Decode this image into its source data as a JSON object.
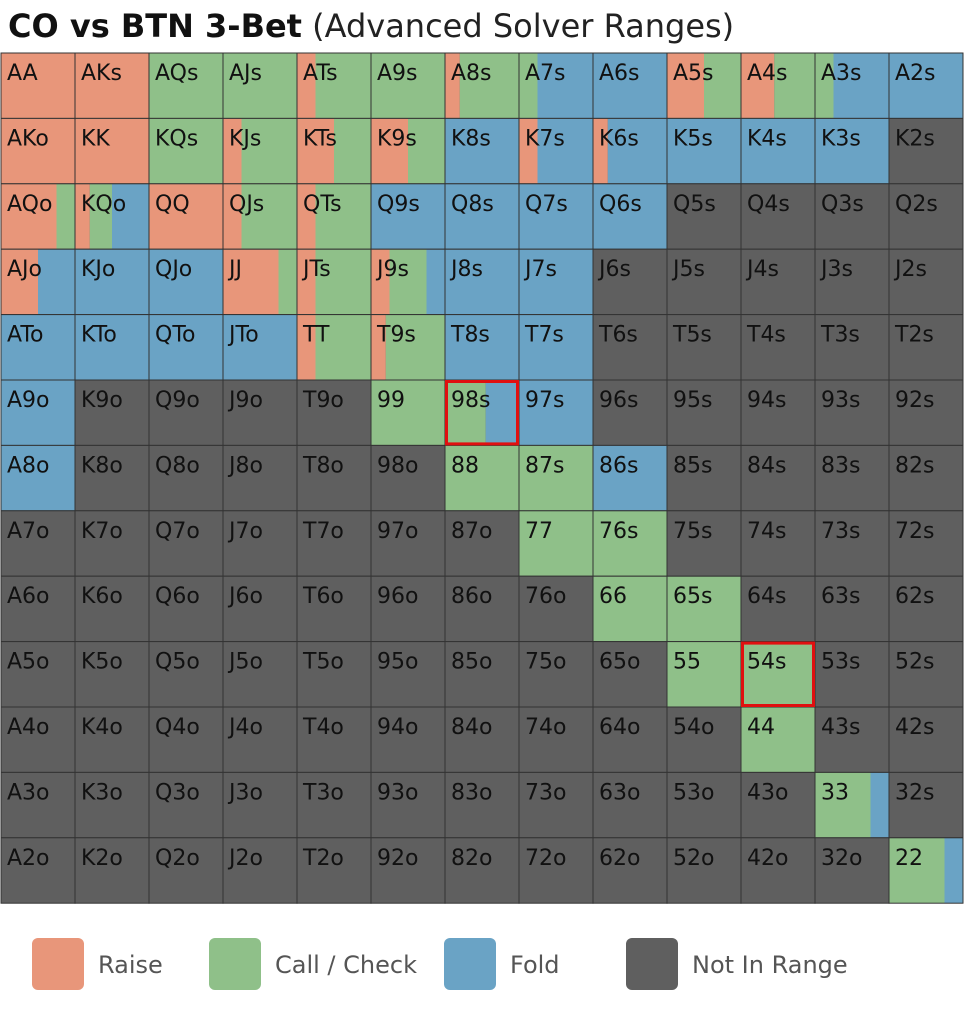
{
  "header": {
    "title_bold": "CO vs BTN 3-Bet",
    "title_light": "(Advanced Solver Ranges)"
  },
  "colors": {
    "raise": "#e8967a",
    "call": "#8fc089",
    "fold": "#6aa3c5",
    "none": "#5f5f5f",
    "highlight": "#e01010",
    "gridline": "#333333"
  },
  "legend": [
    {
      "key": "raise",
      "label": "Raise"
    },
    {
      "key": "call",
      "label": "Call / Check"
    },
    {
      "key": "fold",
      "label": "Fold"
    },
    {
      "key": "none",
      "label": "Not In Range"
    }
  ],
  "chart_data": {
    "type": "heatmap",
    "title": "CO vs BTN 3-Bet (Advanced Solver Ranges)",
    "actions": [
      "Raise",
      "Call / Check",
      "Fold",
      "Not In Range"
    ],
    "mix_order": [
      "raise",
      "call",
      "fold"
    ],
    "rows": [
      [
        {
          "hand": "AA",
          "r": 1,
          "c": 0,
          "f": 0
        },
        {
          "hand": "AKs",
          "r": 1,
          "c": 0,
          "f": 0
        },
        {
          "hand": "AQs",
          "r": 0,
          "c": 1,
          "f": 0
        },
        {
          "hand": "AJs",
          "r": 0,
          "c": 1,
          "f": 0
        },
        {
          "hand": "ATs",
          "r": 0.25,
          "c": 0.75,
          "f": 0
        },
        {
          "hand": "A9s",
          "r": 0,
          "c": 1,
          "f": 0
        },
        {
          "hand": "A8s",
          "r": 0.2,
          "c": 0.8,
          "f": 0
        },
        {
          "hand": "A7s",
          "r": 0,
          "c": 0.25,
          "f": 0.75
        },
        {
          "hand": "A6s",
          "r": 0,
          "c": 0,
          "f": 1
        },
        {
          "hand": "A5s",
          "r": 0.5,
          "c": 0.5,
          "f": 0
        },
        {
          "hand": "A4s",
          "r": 0.45,
          "c": 0.55,
          "f": 0
        },
        {
          "hand": "A3s",
          "r": 0,
          "c": 0.25,
          "f": 0.75
        },
        {
          "hand": "A2s",
          "r": 0,
          "c": 0,
          "f": 1
        }
      ],
      [
        {
          "hand": "AKo",
          "r": 1,
          "c": 0,
          "f": 0
        },
        {
          "hand": "KK",
          "r": 1,
          "c": 0,
          "f": 0
        },
        {
          "hand": "KQs",
          "r": 0,
          "c": 1,
          "f": 0
        },
        {
          "hand": "KJs",
          "r": 0.25,
          "c": 0.75,
          "f": 0
        },
        {
          "hand": "KTs",
          "r": 0.5,
          "c": 0.5,
          "f": 0
        },
        {
          "hand": "K9s",
          "r": 0.5,
          "c": 0.5,
          "f": 0
        },
        {
          "hand": "K8s",
          "r": 0,
          "c": 0,
          "f": 1
        },
        {
          "hand": "K7s",
          "r": 0.25,
          "c": 0,
          "f": 0.75
        },
        {
          "hand": "K6s",
          "r": 0.2,
          "c": 0,
          "f": 0.8
        },
        {
          "hand": "K5s",
          "r": 0,
          "c": 0,
          "f": 1
        },
        {
          "hand": "K4s",
          "r": 0,
          "c": 0,
          "f": 1
        },
        {
          "hand": "K3s",
          "r": 0,
          "c": 0,
          "f": 1
        },
        {
          "hand": "K2s",
          "r": 0,
          "c": 0,
          "f": 0
        }
      ],
      [
        {
          "hand": "AQo",
          "r": 0.75,
          "c": 0.25,
          "f": 0
        },
        {
          "hand": "KQo",
          "r": 0.2,
          "c": 0.3,
          "f": 0.5
        },
        {
          "hand": "QQ",
          "r": 1,
          "c": 0,
          "f": 0
        },
        {
          "hand": "QJs",
          "r": 0.25,
          "c": 0.75,
          "f": 0
        },
        {
          "hand": "QTs",
          "r": 0.25,
          "c": 0.75,
          "f": 0
        },
        {
          "hand": "Q9s",
          "r": 0,
          "c": 0,
          "f": 1
        },
        {
          "hand": "Q8s",
          "r": 0,
          "c": 0,
          "f": 1
        },
        {
          "hand": "Q7s",
          "r": 0,
          "c": 0,
          "f": 1
        },
        {
          "hand": "Q6s",
          "r": 0,
          "c": 0,
          "f": 1
        },
        {
          "hand": "Q5s",
          "r": 0,
          "c": 0,
          "f": 0
        },
        {
          "hand": "Q4s",
          "r": 0,
          "c": 0,
          "f": 0
        },
        {
          "hand": "Q3s",
          "r": 0,
          "c": 0,
          "f": 0
        },
        {
          "hand": "Q2s",
          "r": 0,
          "c": 0,
          "f": 0
        }
      ],
      [
        {
          "hand": "AJo",
          "r": 0.5,
          "c": 0,
          "f": 0.5
        },
        {
          "hand": "KJo",
          "r": 0,
          "c": 0,
          "f": 1
        },
        {
          "hand": "QJo",
          "r": 0,
          "c": 0,
          "f": 1
        },
        {
          "hand": "JJ",
          "r": 0.75,
          "c": 0.25,
          "f": 0
        },
        {
          "hand": "JTs",
          "r": 0.25,
          "c": 0.75,
          "f": 0
        },
        {
          "hand": "J9s",
          "r": 0.25,
          "c": 0.5,
          "f": 0.25
        },
        {
          "hand": "J8s",
          "r": 0,
          "c": 0,
          "f": 1
        },
        {
          "hand": "J7s",
          "r": 0,
          "c": 0,
          "f": 1
        },
        {
          "hand": "J6s",
          "r": 0,
          "c": 0,
          "f": 0
        },
        {
          "hand": "J5s",
          "r": 0,
          "c": 0,
          "f": 0
        },
        {
          "hand": "J4s",
          "r": 0,
          "c": 0,
          "f": 0
        },
        {
          "hand": "J3s",
          "r": 0,
          "c": 0,
          "f": 0
        },
        {
          "hand": "J2s",
          "r": 0,
          "c": 0,
          "f": 0
        }
      ],
      [
        {
          "hand": "ATo",
          "r": 0,
          "c": 0,
          "f": 1
        },
        {
          "hand": "KTo",
          "r": 0,
          "c": 0,
          "f": 1
        },
        {
          "hand": "QTo",
          "r": 0,
          "c": 0,
          "f": 1
        },
        {
          "hand": "JTo",
          "r": 0,
          "c": 0,
          "f": 1
        },
        {
          "hand": "TT",
          "r": 0.25,
          "c": 0.75,
          "f": 0
        },
        {
          "hand": "T9s",
          "r": 0.2,
          "c": 0.8,
          "f": 0
        },
        {
          "hand": "T8s",
          "r": 0,
          "c": 0,
          "f": 1
        },
        {
          "hand": "T7s",
          "r": 0,
          "c": 0,
          "f": 1
        },
        {
          "hand": "T6s",
          "r": 0,
          "c": 0,
          "f": 0
        },
        {
          "hand": "T5s",
          "r": 0,
          "c": 0,
          "f": 0
        },
        {
          "hand": "T4s",
          "r": 0,
          "c": 0,
          "f": 0
        },
        {
          "hand": "T3s",
          "r": 0,
          "c": 0,
          "f": 0
        },
        {
          "hand": "T2s",
          "r": 0,
          "c": 0,
          "f": 0
        }
      ],
      [
        {
          "hand": "A9o",
          "r": 0,
          "c": 0,
          "f": 1
        },
        {
          "hand": "K9o",
          "r": 0,
          "c": 0,
          "f": 0
        },
        {
          "hand": "Q9o",
          "r": 0,
          "c": 0,
          "f": 0
        },
        {
          "hand": "J9o",
          "r": 0,
          "c": 0,
          "f": 0
        },
        {
          "hand": "T9o",
          "r": 0,
          "c": 0,
          "f": 0
        },
        {
          "hand": "99",
          "r": 0,
          "c": 1,
          "f": 0
        },
        {
          "hand": "98s",
          "r": 0,
          "c": 0.55,
          "f": 0.45
        },
        {
          "hand": "97s",
          "r": 0,
          "c": 0,
          "f": 1
        },
        {
          "hand": "96s",
          "r": 0,
          "c": 0,
          "f": 0
        },
        {
          "hand": "95s",
          "r": 0,
          "c": 0,
          "f": 0
        },
        {
          "hand": "94s",
          "r": 0,
          "c": 0,
          "f": 0
        },
        {
          "hand": "93s",
          "r": 0,
          "c": 0,
          "f": 0
        },
        {
          "hand": "92s",
          "r": 0,
          "c": 0,
          "f": 0
        }
      ],
      [
        {
          "hand": "A8o",
          "r": 0,
          "c": 0,
          "f": 1
        },
        {
          "hand": "K8o",
          "r": 0,
          "c": 0,
          "f": 0
        },
        {
          "hand": "Q8o",
          "r": 0,
          "c": 0,
          "f": 0
        },
        {
          "hand": "J8o",
          "r": 0,
          "c": 0,
          "f": 0
        },
        {
          "hand": "T8o",
          "r": 0,
          "c": 0,
          "f": 0
        },
        {
          "hand": "98o",
          "r": 0,
          "c": 0,
          "f": 0
        },
        {
          "hand": "88",
          "r": 0,
          "c": 1,
          "f": 0
        },
        {
          "hand": "87s",
          "r": 0,
          "c": 1,
          "f": 0
        },
        {
          "hand": "86s",
          "r": 0,
          "c": 0,
          "f": 1
        },
        {
          "hand": "85s",
          "r": 0,
          "c": 0,
          "f": 0
        },
        {
          "hand": "84s",
          "r": 0,
          "c": 0,
          "f": 0
        },
        {
          "hand": "83s",
          "r": 0,
          "c": 0,
          "f": 0
        },
        {
          "hand": "82s",
          "r": 0,
          "c": 0,
          "f": 0
        }
      ],
      [
        {
          "hand": "A7o",
          "r": 0,
          "c": 0,
          "f": 0
        },
        {
          "hand": "K7o",
          "r": 0,
          "c": 0,
          "f": 0
        },
        {
          "hand": "Q7o",
          "r": 0,
          "c": 0,
          "f": 0
        },
        {
          "hand": "J7o",
          "r": 0,
          "c": 0,
          "f": 0
        },
        {
          "hand": "T7o",
          "r": 0,
          "c": 0,
          "f": 0
        },
        {
          "hand": "97o",
          "r": 0,
          "c": 0,
          "f": 0
        },
        {
          "hand": "87o",
          "r": 0,
          "c": 0,
          "f": 0
        },
        {
          "hand": "77",
          "r": 0,
          "c": 1,
          "f": 0
        },
        {
          "hand": "76s",
          "r": 0,
          "c": 1,
          "f": 0
        },
        {
          "hand": "75s",
          "r": 0,
          "c": 0,
          "f": 0
        },
        {
          "hand": "74s",
          "r": 0,
          "c": 0,
          "f": 0
        },
        {
          "hand": "73s",
          "r": 0,
          "c": 0,
          "f": 0
        },
        {
          "hand": "72s",
          "r": 0,
          "c": 0,
          "f": 0
        }
      ],
      [
        {
          "hand": "A6o",
          "r": 0,
          "c": 0,
          "f": 0
        },
        {
          "hand": "K6o",
          "r": 0,
          "c": 0,
          "f": 0
        },
        {
          "hand": "Q6o",
          "r": 0,
          "c": 0,
          "f": 0
        },
        {
          "hand": "J6o",
          "r": 0,
          "c": 0,
          "f": 0
        },
        {
          "hand": "T6o",
          "r": 0,
          "c": 0,
          "f": 0
        },
        {
          "hand": "96o",
          "r": 0,
          "c": 0,
          "f": 0
        },
        {
          "hand": "86o",
          "r": 0,
          "c": 0,
          "f": 0
        },
        {
          "hand": "76o",
          "r": 0,
          "c": 0,
          "f": 0
        },
        {
          "hand": "66",
          "r": 0,
          "c": 1,
          "f": 0
        },
        {
          "hand": "65s",
          "r": 0,
          "c": 1,
          "f": 0
        },
        {
          "hand": "64s",
          "r": 0,
          "c": 0,
          "f": 0
        },
        {
          "hand": "63s",
          "r": 0,
          "c": 0,
          "f": 0
        },
        {
          "hand": "62s",
          "r": 0,
          "c": 0,
          "f": 0
        }
      ],
      [
        {
          "hand": "A5o",
          "r": 0,
          "c": 0,
          "f": 0
        },
        {
          "hand": "K5o",
          "r": 0,
          "c": 0,
          "f": 0
        },
        {
          "hand": "Q5o",
          "r": 0,
          "c": 0,
          "f": 0
        },
        {
          "hand": "J5o",
          "r": 0,
          "c": 0,
          "f": 0
        },
        {
          "hand": "T5o",
          "r": 0,
          "c": 0,
          "f": 0
        },
        {
          "hand": "95o",
          "r": 0,
          "c": 0,
          "f": 0
        },
        {
          "hand": "85o",
          "r": 0,
          "c": 0,
          "f": 0
        },
        {
          "hand": "75o",
          "r": 0,
          "c": 0,
          "f": 0
        },
        {
          "hand": "65o",
          "r": 0,
          "c": 0,
          "f": 0
        },
        {
          "hand": "55",
          "r": 0,
          "c": 1,
          "f": 0
        },
        {
          "hand": "54s",
          "r": 0,
          "c": 1,
          "f": 0
        },
        {
          "hand": "53s",
          "r": 0,
          "c": 0,
          "f": 0
        },
        {
          "hand": "52s",
          "r": 0,
          "c": 0,
          "f": 0
        }
      ],
      [
        {
          "hand": "A4o",
          "r": 0,
          "c": 0,
          "f": 0
        },
        {
          "hand": "K4o",
          "r": 0,
          "c": 0,
          "f": 0
        },
        {
          "hand": "Q4o",
          "r": 0,
          "c": 0,
          "f": 0
        },
        {
          "hand": "J4o",
          "r": 0,
          "c": 0,
          "f": 0
        },
        {
          "hand": "T4o",
          "r": 0,
          "c": 0,
          "f": 0
        },
        {
          "hand": "94o",
          "r": 0,
          "c": 0,
          "f": 0
        },
        {
          "hand": "84o",
          "r": 0,
          "c": 0,
          "f": 0
        },
        {
          "hand": "74o",
          "r": 0,
          "c": 0,
          "f": 0
        },
        {
          "hand": "64o",
          "r": 0,
          "c": 0,
          "f": 0
        },
        {
          "hand": "54o",
          "r": 0,
          "c": 0,
          "f": 0
        },
        {
          "hand": "44",
          "r": 0,
          "c": 1,
          "f": 0
        },
        {
          "hand": "43s",
          "r": 0,
          "c": 0,
          "f": 0
        },
        {
          "hand": "42s",
          "r": 0,
          "c": 0,
          "f": 0
        }
      ],
      [
        {
          "hand": "A3o",
          "r": 0,
          "c": 0,
          "f": 0
        },
        {
          "hand": "K3o",
          "r": 0,
          "c": 0,
          "f": 0
        },
        {
          "hand": "Q3o",
          "r": 0,
          "c": 0,
          "f": 0
        },
        {
          "hand": "J3o",
          "r": 0,
          "c": 0,
          "f": 0
        },
        {
          "hand": "T3o",
          "r": 0,
          "c": 0,
          "f": 0
        },
        {
          "hand": "93o",
          "r": 0,
          "c": 0,
          "f": 0
        },
        {
          "hand": "83o",
          "r": 0,
          "c": 0,
          "f": 0
        },
        {
          "hand": "73o",
          "r": 0,
          "c": 0,
          "f": 0
        },
        {
          "hand": "63o",
          "r": 0,
          "c": 0,
          "f": 0
        },
        {
          "hand": "53o",
          "r": 0,
          "c": 0,
          "f": 0
        },
        {
          "hand": "43o",
          "r": 0,
          "c": 0,
          "f": 0
        },
        {
          "hand": "33",
          "r": 0,
          "c": 0.75,
          "f": 0.25
        },
        {
          "hand": "32s",
          "r": 0,
          "c": 0,
          "f": 0
        }
      ],
      [
        {
          "hand": "A2o",
          "r": 0,
          "c": 0,
          "f": 0
        },
        {
          "hand": "K2o",
          "r": 0,
          "c": 0,
          "f": 0
        },
        {
          "hand": "Q2o",
          "r": 0,
          "c": 0,
          "f": 0
        },
        {
          "hand": "J2o",
          "r": 0,
          "c": 0,
          "f": 0
        },
        {
          "hand": "T2o",
          "r": 0,
          "c": 0,
          "f": 0
        },
        {
          "hand": "92o",
          "r": 0,
          "c": 0,
          "f": 0
        },
        {
          "hand": "82o",
          "r": 0,
          "c": 0,
          "f": 0
        },
        {
          "hand": "72o",
          "r": 0,
          "c": 0,
          "f": 0
        },
        {
          "hand": "62o",
          "r": 0,
          "c": 0,
          "f": 0
        },
        {
          "hand": "52o",
          "r": 0,
          "c": 0,
          "f": 0
        },
        {
          "hand": "42o",
          "r": 0,
          "c": 0,
          "f": 0
        },
        {
          "hand": "32o",
          "r": 0,
          "c": 0,
          "f": 0
        },
        {
          "hand": "22",
          "r": 0,
          "c": 0.75,
          "f": 0.25
        }
      ]
    ],
    "highlighted": [
      "98s",
      "54s"
    ]
  }
}
